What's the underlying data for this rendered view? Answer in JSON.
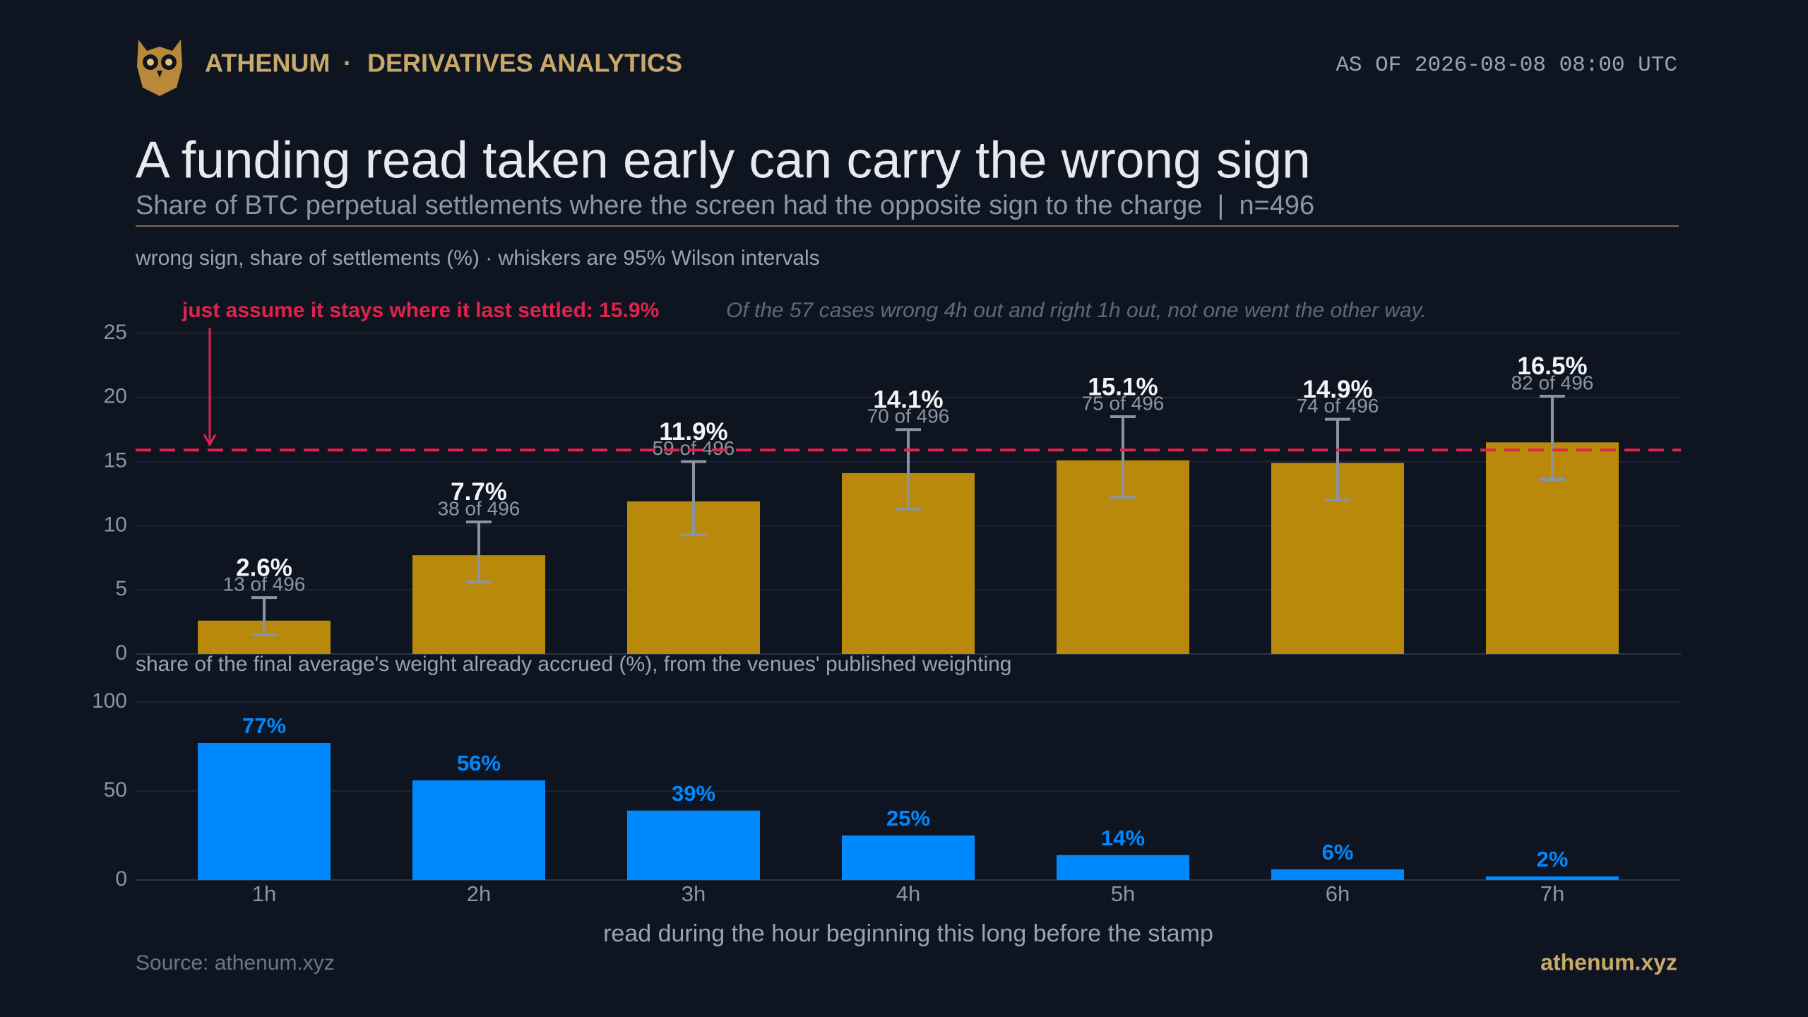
{
  "header": {
    "brand": "ATHENUM",
    "separator": "·",
    "section": "DERIVATIVES ANALYTICS",
    "timestamp": "AS OF 2026-08-08 08:00 UTC"
  },
  "title": "A funding read taken early can carry the wrong sign",
  "subtitle": "Share of BTC perpetual settlements where the screen had the opposite sign to the charge  |  n=496",
  "chart_data": [
    {
      "type": "bar",
      "ylabel": "wrong sign, share of settlements (%)  ·  whiskers are 95% Wilson intervals",
      "categories": [
        "1h",
        "2h",
        "3h",
        "4h",
        "5h",
        "6h",
        "7h"
      ],
      "values": [
        2.6,
        7.7,
        11.9,
        14.1,
        15.1,
        14.9,
        16.5
      ],
      "value_labels": [
        "2.6%",
        "7.7%",
        "11.9%",
        "14.1%",
        "15.1%",
        "14.9%",
        "16.5%"
      ],
      "count_labels": [
        "13 of 496",
        "38 of 496",
        "59 of 496",
        "70 of 496",
        "75 of 496",
        "74 of 496",
        "82 of 496"
      ],
      "ci_low": [
        1.5,
        5.6,
        9.3,
        11.3,
        12.2,
        12.0,
        13.6
      ],
      "ci_high": [
        4.4,
        10.3,
        15.0,
        17.5,
        18.5,
        18.3,
        20.1
      ],
      "color": "#b8890a",
      "whisker_color": "#8a94a0",
      "reference": {
        "value": 15.9,
        "label": "just assume it stays where it last settled: 15.9%",
        "color": "#e0234e"
      },
      "note": "Of the 57 cases wrong 4h out and right 1h out, not one went the other way.",
      "ylim": [
        0,
        25
      ],
      "yticks": [
        0,
        5,
        10,
        15,
        20,
        25
      ],
      "grid": true
    },
    {
      "type": "bar",
      "ylabel": "share of the final average's weight already accrued (%), from the venues' published weighting",
      "xlabel": "read during the hour beginning this long before the stamp",
      "categories": [
        "1h",
        "2h",
        "3h",
        "4h",
        "5h",
        "6h",
        "7h"
      ],
      "values": [
        77,
        56,
        39,
        25,
        14,
        6,
        2
      ],
      "value_labels": [
        "77%",
        "56%",
        "39%",
        "25%",
        "14%",
        "6%",
        "2%"
      ],
      "color": "#0088ff",
      "ylim": [
        0,
        100
      ],
      "yticks": [
        0,
        50,
        100
      ],
      "grid": true
    }
  ],
  "footer": {
    "source": "Source: athenum.xyz",
    "site": "athenum.xyz"
  }
}
